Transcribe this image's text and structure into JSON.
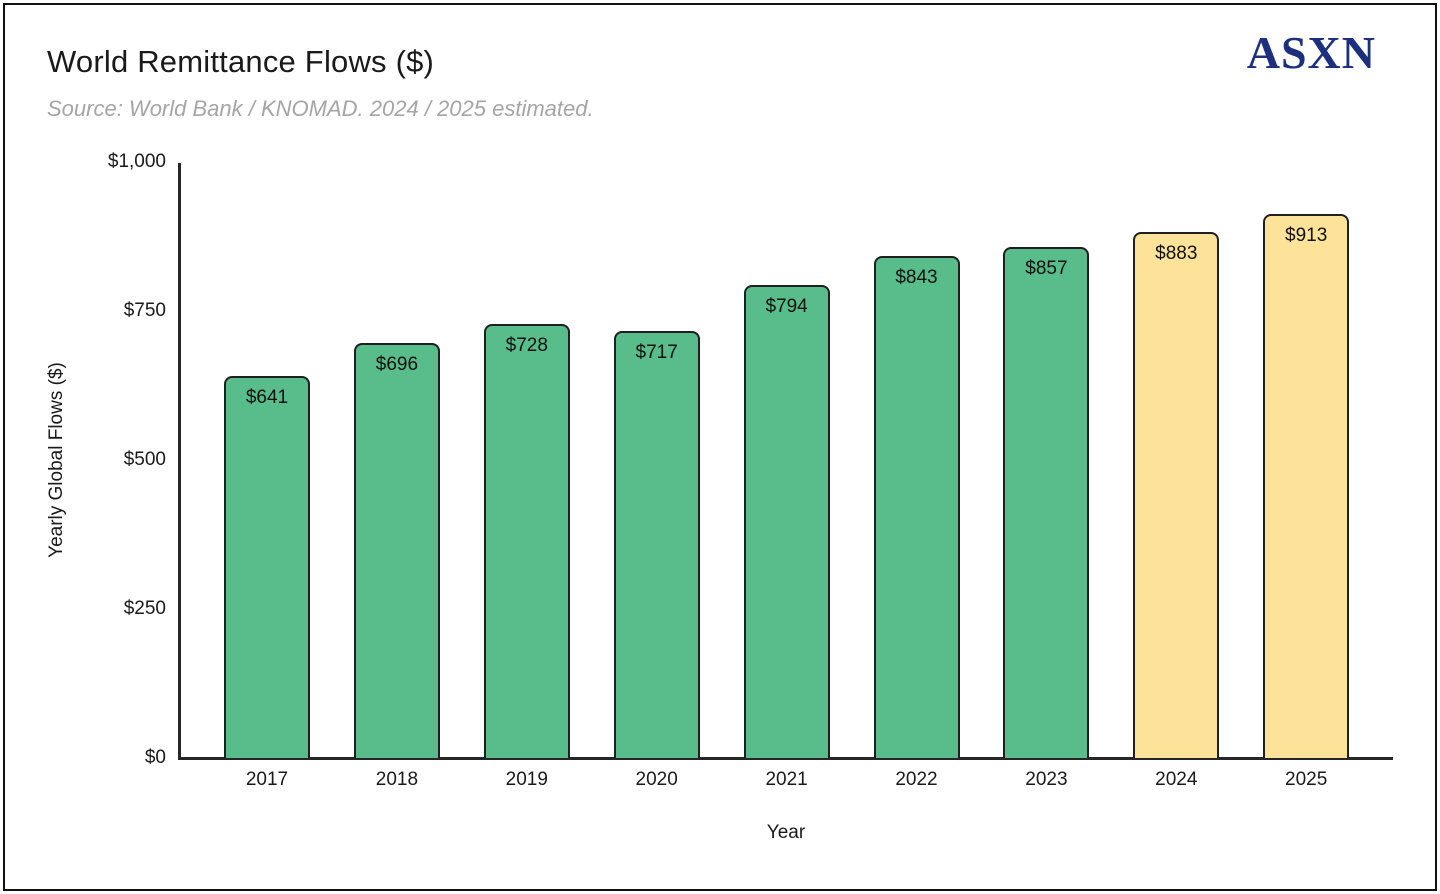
{
  "header": {
    "title": "World Remittance Flows ($)",
    "subtitle": "Source: World Bank / KNOMAD. 2024 / 2025 estimated.",
    "logo_text": "ASXN"
  },
  "colors": {
    "bar_actual": "#58bd8b",
    "bar_estimated": "#fde39a",
    "bar_border": "#1f1f1f",
    "axis_line": "#262626",
    "title_text": "#1a1a1a",
    "subtitle_text": "#a5a5a5",
    "logo_navy": "#1d3080"
  },
  "chart_data": {
    "type": "bar",
    "title": "World Remittance Flows ($)",
    "subtitle": "Source: World Bank / KNOMAD. 2024 / 2025 estimated.",
    "categories": [
      "2017",
      "2018",
      "2019",
      "2020",
      "2021",
      "2022",
      "2023",
      "2024",
      "2025"
    ],
    "values": [
      641,
      696,
      728,
      717,
      794,
      843,
      857,
      883,
      913
    ],
    "bar_labels": [
      "$641",
      "$696",
      "$728",
      "$717",
      "$794",
      "$843",
      "$857",
      "$883",
      "$913"
    ],
    "estimated_flags": [
      false,
      false,
      false,
      false,
      false,
      false,
      false,
      true,
      true
    ],
    "xlabel": "Year",
    "ylabel": "Yearly Global Flows ($)",
    "ylim": [
      0,
      1000
    ],
    "yticks": [
      {
        "value": 0,
        "label": "$0"
      },
      {
        "value": 250,
        "label": "$250"
      },
      {
        "value": 500,
        "label": "$500"
      },
      {
        "value": 750,
        "label": "$750"
      },
      {
        "value": 1000,
        "label": "$1,000"
      }
    ],
    "grid": false,
    "legend": "none"
  }
}
